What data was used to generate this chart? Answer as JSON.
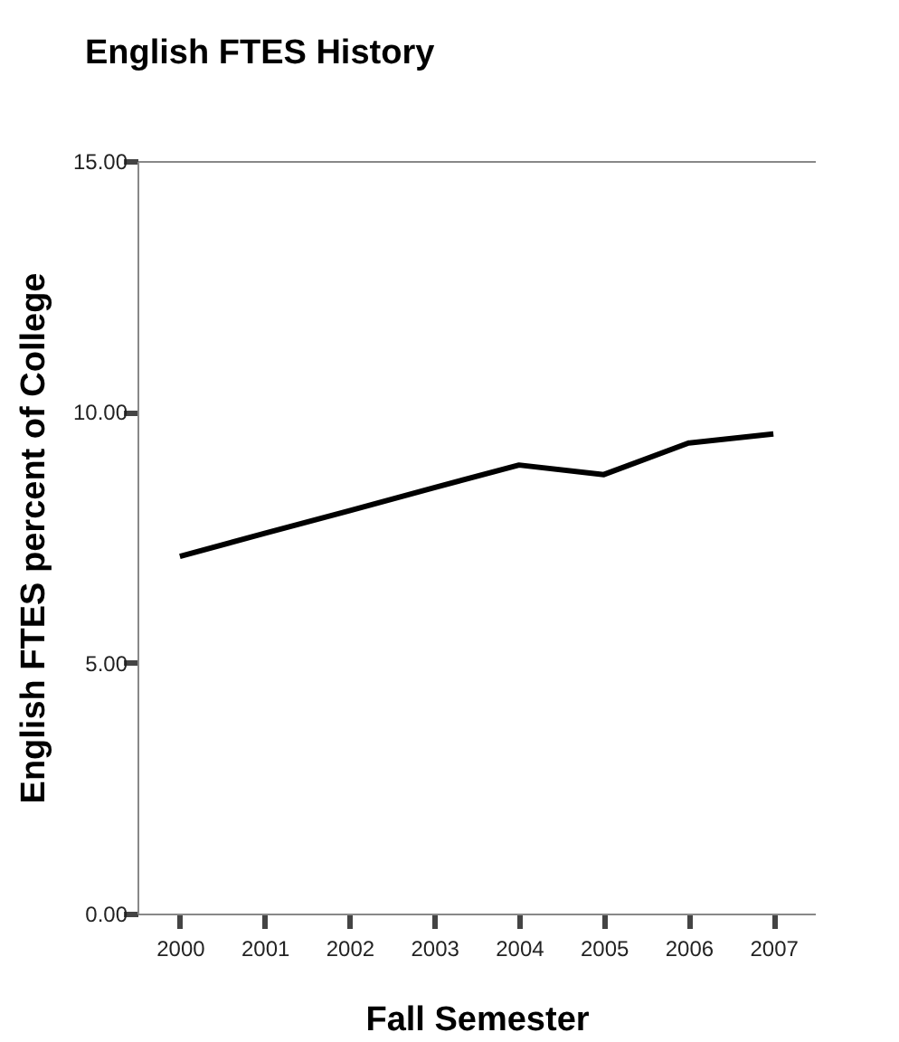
{
  "chart_data": {
    "type": "line",
    "title": "English FTES History",
    "xlabel": "Fall Semester",
    "ylabel": "English FTES percent of College",
    "categories": [
      "2000",
      "2001",
      "2002",
      "2003",
      "2004",
      "2005",
      "2006",
      "2007"
    ],
    "series": [
      {
        "color": "#000000",
        "values": [
          7.12,
          7.58,
          8.03,
          8.49,
          8.94,
          8.75,
          9.38,
          9.56
        ]
      }
    ],
    "ylim": [
      0,
      15
    ],
    "yticks": [
      {
        "value": 0,
        "label": "0.00"
      },
      {
        "value": 5,
        "label": "5.00"
      },
      {
        "value": 10,
        "label": "10.00"
      },
      {
        "value": 15,
        "label": "15.00"
      }
    ],
    "grid": false,
    "marker": "none",
    "line_style": "solid"
  }
}
